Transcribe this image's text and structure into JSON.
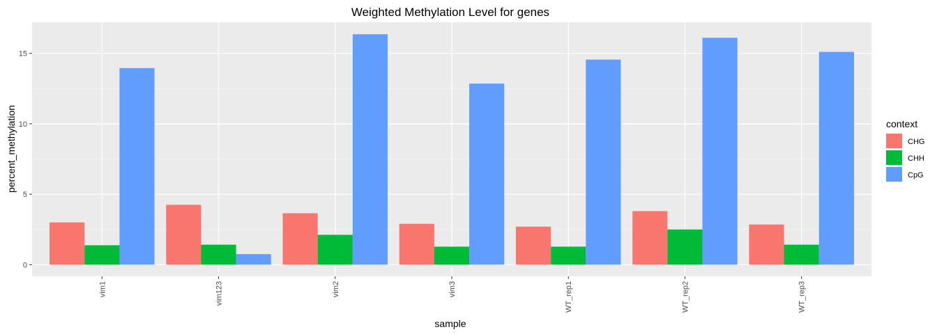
{
  "chart_data": {
    "type": "bar",
    "title": "Weighted Methylation Level for genes",
    "xlabel": "sample",
    "ylabel": "percent_methylation",
    "categories": [
      "vim1",
      "vim123",
      "vim2",
      "vim3",
      "WT_rep1",
      "WT_rep2",
      "WT_rep3"
    ],
    "series": [
      {
        "name": "CHG",
        "color": "#F8766D",
        "values": [
          3.0,
          4.25,
          3.65,
          2.9,
          2.7,
          3.8,
          2.85
        ]
      },
      {
        "name": "CHH",
        "color": "#00BA38",
        "values": [
          1.38,
          1.42,
          2.12,
          1.28,
          1.28,
          2.5,
          1.42
        ]
      },
      {
        "name": "CpG",
        "color": "#619CFF",
        "values": [
          13.95,
          0.75,
          16.35,
          12.85,
          14.55,
          16.1,
          15.1
        ]
      }
    ],
    "ylim": [
      -0.82,
      17.2
    ],
    "yticks": [
      0,
      5,
      10,
      15
    ],
    "ytick_labels": [
      "0",
      "5",
      "10",
      "15"
    ],
    "grid": true,
    "legend": {
      "title": "context",
      "position": "right"
    },
    "x_tick_rotation": "vertical"
  }
}
